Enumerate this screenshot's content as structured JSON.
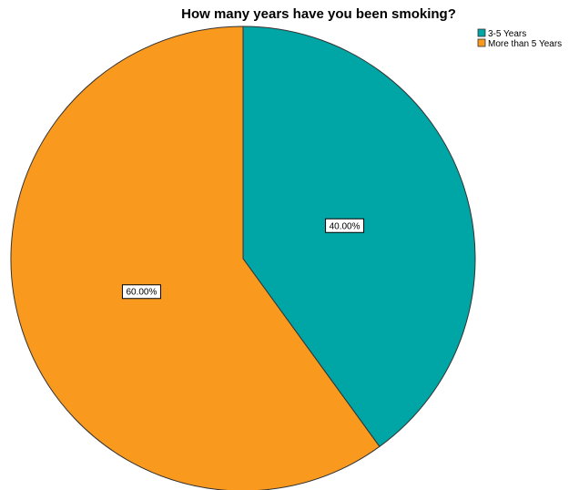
{
  "chart_data": {
    "type": "pie",
    "title": "How many years have you been smoking?",
    "labels": [
      "3-5 Years",
      "More than 5 Years"
    ],
    "values": [
      40.0,
      60.0
    ],
    "data_labels": [
      "40.00%",
      "60.00%"
    ],
    "colors": [
      "#00a5a5",
      "#f99a1f"
    ],
    "legend_position": "top-right",
    "start_angle": "12 o'clock",
    "direction": "clockwise"
  }
}
